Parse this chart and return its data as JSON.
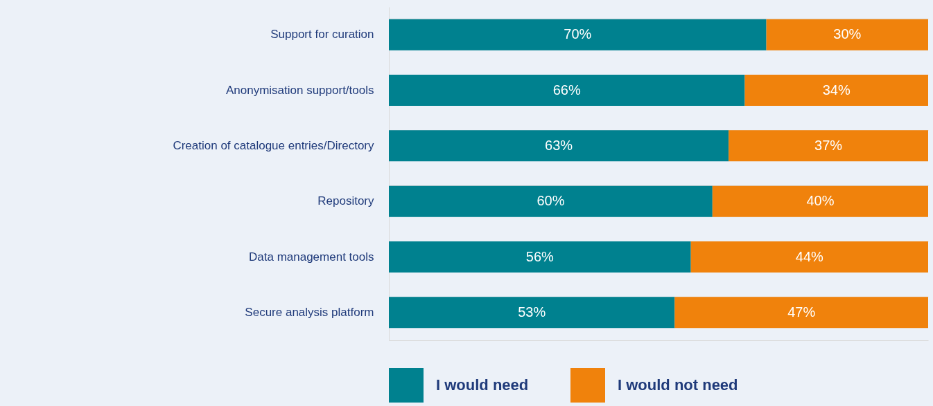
{
  "chart_data": {
    "type": "bar",
    "orientation": "horizontal",
    "stacked": true,
    "grid": "y",
    "legend": "bottom",
    "tick_labels": "y",
    "categories": [
      "Support for curation",
      "Anonymisation support/tools",
      "Creation of catalogue entries/Directory",
      "Repository",
      "Data management tools",
      "Secure analysis platform"
    ],
    "series": [
      {
        "name": "I would need",
        "color": "#00818f",
        "values": [
          70,
          66,
          63,
          60,
          56,
          53
        ],
        "value_labels": [
          "70%",
          "66%",
          "63%",
          "60%",
          "56%",
          "53%"
        ]
      },
      {
        "name": "I would not need",
        "color": "#f0820c",
        "values": [
          30,
          34,
          37,
          40,
          44,
          47
        ],
        "value_labels": [
          "30%",
          "34%",
          "37%",
          "40%",
          "44%",
          "47%"
        ]
      }
    ]
  }
}
